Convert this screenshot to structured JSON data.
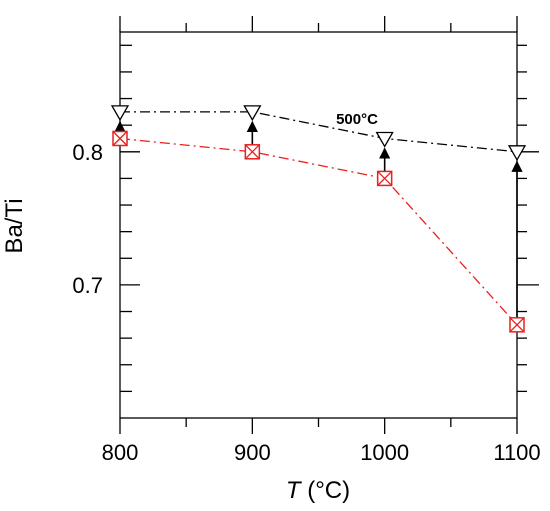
{
  "chart_data": {
    "type": "line",
    "x": [
      800,
      900,
      1000,
      1100
    ],
    "xlim": [
      800,
      1100
    ],
    "ylim": [
      0.6,
      0.89
    ],
    "xticks": [
      800,
      900,
      1000,
      1100
    ],
    "xtick_labels": [
      "800",
      "900",
      "1000",
      "1100"
    ],
    "yticks": [
      0.7,
      0.8
    ],
    "ytick_labels": [
      "0.7",
      "0.8"
    ],
    "xlabel": {
      "italic": "T",
      "unit": " (°C)"
    },
    "ylabel": "Ba/Ti",
    "grid": false,
    "legend": "none",
    "series": [
      {
        "values": [
          0.83,
          0.83,
          0.81,
          0.8
        ],
        "color": "#000000",
        "marker": "triangle-down-open",
        "linestyle": "dash-dot"
      },
      {
        "values": [
          0.81,
          0.8,
          0.78,
          0.67
        ],
        "color": "#e8201e",
        "marker": "square-x-open",
        "linestyle": "dash-dot"
      }
    ],
    "annotations": [
      {
        "text": "500°C",
        "x": 960,
        "y": 0.829
      }
    ],
    "arrows": [
      {
        "x": 800,
        "from": 0.81,
        "to": 0.83
      },
      {
        "x": 900,
        "from": 0.8,
        "to": 0.83
      },
      {
        "x": 1000,
        "from": 0.78,
        "to": 0.81
      },
      {
        "x": 1100,
        "from": 0.67,
        "to": 0.8
      }
    ]
  }
}
